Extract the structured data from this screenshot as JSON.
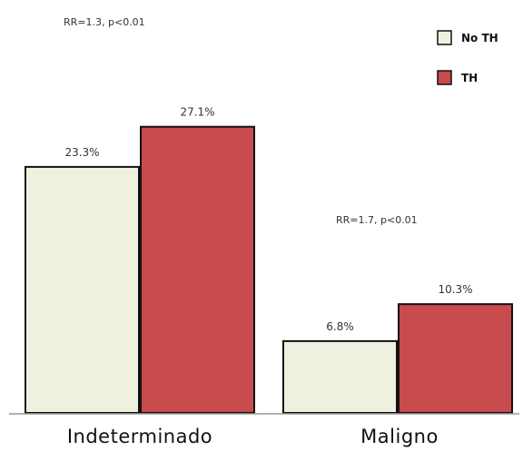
{
  "chart_data": {
    "type": "bar",
    "categories": [
      "Indeterminado",
      "Maligno"
    ],
    "series": [
      {
        "name": "No TH",
        "values": [
          23.3,
          6.8
        ],
        "labels": [
          "23.3%",
          "6.8%"
        ],
        "color": "#eef1e0"
      },
      {
        "name": "TH",
        "values": [
          27.1,
          10.3
        ],
        "labels": [
          "27.1%",
          "10.3%"
        ],
        "color": "#c84b4d"
      }
    ],
    "annotations": [
      "RR=1.3, p<0.01",
      "RR=1.7, p<0.01"
    ],
    "ylim": [
      0,
      31.2
    ],
    "grid": false,
    "legend": "top-right"
  }
}
